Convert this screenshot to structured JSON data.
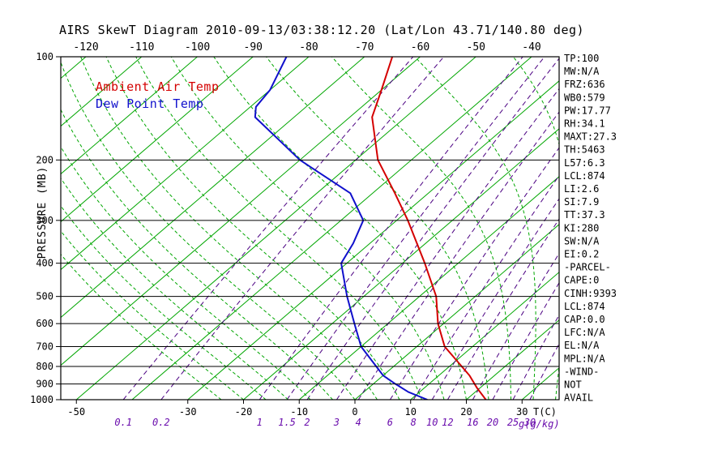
{
  "title": "AIRS SkewT Diagram 2010-09-13/03:38:12.20 (Lat/Lon 43.71/140.80 deg)",
  "legend": {
    "temp": "Ambient Air Temp",
    "dew": "Dew Point Temp"
  },
  "axes": {
    "pressure_label": "PRESSURE (MB)",
    "pressure_ticks": [
      100,
      200,
      300,
      400,
      500,
      600,
      700,
      800,
      900,
      1000
    ],
    "top_temp_ticks": [
      -120,
      -110,
      -100,
      -90,
      -80,
      -70,
      -60,
      -50,
      -40
    ],
    "bottom_temp_ticks": [
      -50,
      -30,
      -20,
      -10,
      0,
      10,
      20,
      30
    ],
    "bottom_temp_unit": "T(C)",
    "mixing_ratio_unit": "g(g/kg)"
  },
  "stats": [
    "TP:100",
    "MW:N/A",
    "FRZ:636",
    "WB0:579",
    "PW:17.77",
    "RH:34.1",
    "MAXT:27.3",
    "TH:5463",
    "L57:6.3",
    "LCL:874",
    "LI:2.6",
    "SI:7.9",
    "TT:37.3",
    "KI:280",
    "SW:N/A",
    "EI:0.2",
    "-PARCEL-",
    "CAPE:0",
    "CINH:9393",
    "LCL:874",
    "CAP:0.0",
    "LFC:N/A",
    "EL:N/A",
    "MPL:N/A",
    "-WIND-",
    "NOT",
    "AVAIL"
  ],
  "colors": {
    "isotherm": "#00a600",
    "moist_adiabat": "#00a600",
    "mixing_ratio": "#4b0082",
    "mixing_label": "#6a0dad",
    "isobar": "#000000",
    "border": "#000000",
    "temp_curve": "#d40000",
    "dewpoint_curve": "#1010cc",
    "top_axis_label": "#d40000",
    "tick_label": "#000000"
  },
  "chart_data": {
    "type": "line",
    "variant": "skew-t-log-p",
    "title": "AIRS SkewT Diagram 2010-09-13/03:38:12.20 (Lat/Lon 43.71/140.80 deg)",
    "xlabel": "T(C)",
    "ylabel": "PRESSURE (MB)",
    "x_range_at_surface_c": [
      -50,
      40
    ],
    "pressure_range_mb": [
      100,
      1000
    ],
    "grid": {
      "isobars_mb": [
        100,
        200,
        300,
        400,
        500,
        600,
        700,
        800,
        900,
        1000
      ],
      "isotherms_c": {
        "min": -130,
        "max": 40,
        "step": 10
      },
      "mixing_ratios_g_kg": [
        0.1,
        0.2,
        1,
        1.5,
        2,
        3,
        4,
        6,
        8,
        10,
        12,
        16,
        20,
        25,
        30
      ],
      "moist_adiabats_c": [
        -24,
        -20,
        -16,
        -12,
        -8,
        -4,
        0,
        4,
        8,
        12,
        16,
        20,
        24,
        28,
        32,
        36
      ]
    },
    "legend_position": "top-left-inside",
    "series": [
      {
        "name": "Ambient Air Temp",
        "color_key": "temp_curve",
        "points_p_t": [
          [
            1000,
            23.5
          ],
          [
            925,
            19.5
          ],
          [
            850,
            15.5
          ],
          [
            700,
            5
          ],
          [
            600,
            -1
          ],
          [
            500,
            -7
          ],
          [
            400,
            -16
          ],
          [
            300,
            -28
          ],
          [
            250,
            -36
          ],
          [
            200,
            -46
          ],
          [
            150,
            -56
          ],
          [
            125,
            -60
          ],
          [
            100,
            -65
          ]
        ]
      },
      {
        "name": "Dew Point Temp",
        "color_key": "dewpoint_curve",
        "points_p_t": [
          [
            1000,
            13
          ],
          [
            950,
            8
          ],
          [
            900,
            4
          ],
          [
            850,
            0
          ],
          [
            700,
            -10
          ],
          [
            600,
            -16
          ],
          [
            500,
            -23
          ],
          [
            400,
            -31
          ],
          [
            350,
            -33
          ],
          [
            300,
            -36
          ],
          [
            250,
            -44
          ],
          [
            200,
            -60
          ],
          [
            150,
            -77
          ],
          [
            140,
            -79
          ],
          [
            125,
            -80
          ],
          [
            100,
            -84
          ]
        ]
      }
    ]
  }
}
